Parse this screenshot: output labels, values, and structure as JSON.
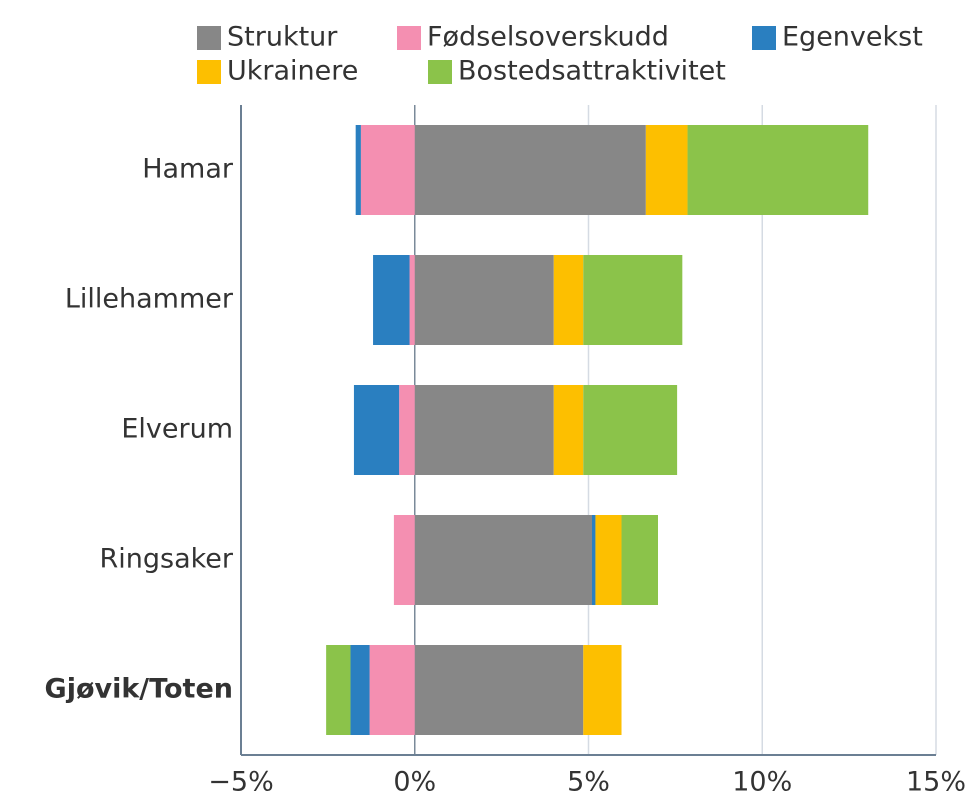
{
  "chart_data": {
    "type": "stacked_barh",
    "categories": [
      "Hamar",
      "Lillehammer",
      "Elverum",
      "Ringsaker",
      "Gjøvik/Toten"
    ],
    "bold_categories": [
      4
    ],
    "series": [
      {
        "name": "Struktur",
        "color": "#878787",
        "values": [
          6.65,
          4.0,
          4.0,
          5.1,
          4.85
        ]
      },
      {
        "name": "Fødselsoverskudd",
        "color": "#f48fb1",
        "values": [
          -1.55,
          -0.15,
          -0.45,
          -0.6,
          -1.3
        ]
      },
      {
        "name": "Egenvekst",
        "color": "#2a7fc0",
        "values": [
          -0.15,
          -1.05,
          -1.3,
          0.1,
          -0.55
        ]
      },
      {
        "name": "Ukrainere",
        "color": "#fdbf00",
        "values": [
          1.2,
          0.85,
          0.85,
          0.75,
          1.1
        ]
      },
      {
        "name": "Bostedsattraktivitet",
        "color": "#8bc34a",
        "values": [
          5.2,
          2.85,
          2.7,
          1.05,
          -0.7
        ]
      }
    ],
    "xlim": [
      -5,
      15
    ],
    "xticks": [
      {
        "value": -5,
        "label": "−5%"
      },
      {
        "value": 0,
        "label": "0%"
      },
      {
        "value": 5,
        "label": "5%"
      },
      {
        "value": 10,
        "label": "10%"
      },
      {
        "value": 15,
        "label": "15%"
      }
    ],
    "grid": true
  }
}
